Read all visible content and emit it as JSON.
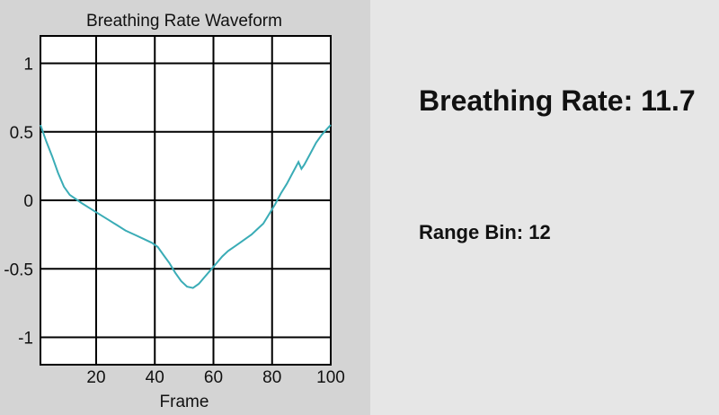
{
  "chart_data": {
    "type": "line",
    "title": "Breathing Rate Waveform",
    "xlabel": "Frame",
    "ylabel": "",
    "xlim": [
      1,
      100
    ],
    "ylim": [
      -1.2,
      1.2
    ],
    "xticks": [
      20,
      40,
      60,
      80,
      100
    ],
    "yticks": [
      1,
      0.5,
      0,
      -0.5,
      -1
    ],
    "ytick_labels": [
      "1",
      "0.5",
      "0",
      "-0.5",
      "-1"
    ],
    "grid": true,
    "line_color": "#3aacb6",
    "series": [
      {
        "x": [
          1,
          3,
          5,
          7,
          9,
          11,
          13,
          15,
          18,
          21,
          24,
          27,
          30,
          33,
          36,
          39,
          41,
          43,
          45,
          47,
          49,
          51,
          53,
          55,
          57,
          59,
          61,
          63,
          65,
          67,
          69,
          71,
          73,
          75,
          77,
          79,
          81,
          83,
          85,
          87,
          89,
          90,
          91,
          93,
          95,
          97,
          100
        ],
        "y": [
          0.55,
          0.43,
          0.32,
          0.2,
          0.1,
          0.04,
          0.01,
          -0.02,
          -0.06,
          -0.1,
          -0.14,
          -0.18,
          -0.22,
          -0.25,
          -0.28,
          -0.31,
          -0.34,
          -0.4,
          -0.46,
          -0.53,
          -0.59,
          -0.63,
          -0.64,
          -0.61,
          -0.56,
          -0.51,
          -0.46,
          -0.41,
          -0.37,
          -0.34,
          -0.31,
          -0.28,
          -0.25,
          -0.21,
          -0.17,
          -0.1,
          -0.03,
          0.05,
          0.12,
          0.2,
          0.28,
          0.23,
          0.26,
          0.34,
          0.42,
          0.48,
          0.55
        ]
      }
    ]
  },
  "status": {
    "breathing_rate_label": "Breathing Rate: ",
    "breathing_rate_value": "11.7",
    "range_bin_label": "Range Bin: ",
    "range_bin_value": "12"
  }
}
